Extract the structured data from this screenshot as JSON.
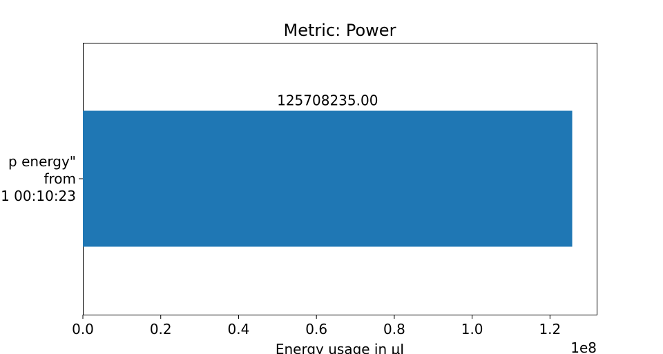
{
  "chart_data": {
    "type": "bar",
    "orientation": "horizontal",
    "title": "Metric: Power",
    "xlabel": "Energy usage in µJ",
    "ylabel": "",
    "x_scale_multiplier": "1e8",
    "xlim": [
      0,
      132000000
    ],
    "xticks": [
      0,
      20000000,
      40000000,
      60000000,
      80000000,
      100000000,
      120000000
    ],
    "xtick_labels": [
      "0.0",
      "0.2",
      "0.4",
      "0.6",
      "0.8",
      "1.0",
      "1.2"
    ],
    "categories": [
      {
        "lines": [
          "p energy\"",
          "from",
          "1 00:10:23"
        ]
      }
    ],
    "values": [
      125708235.0
    ],
    "data_labels": [
      "125708235.00"
    ],
    "bar_color": "#1f77b4",
    "grid": false,
    "legend": "none"
  }
}
